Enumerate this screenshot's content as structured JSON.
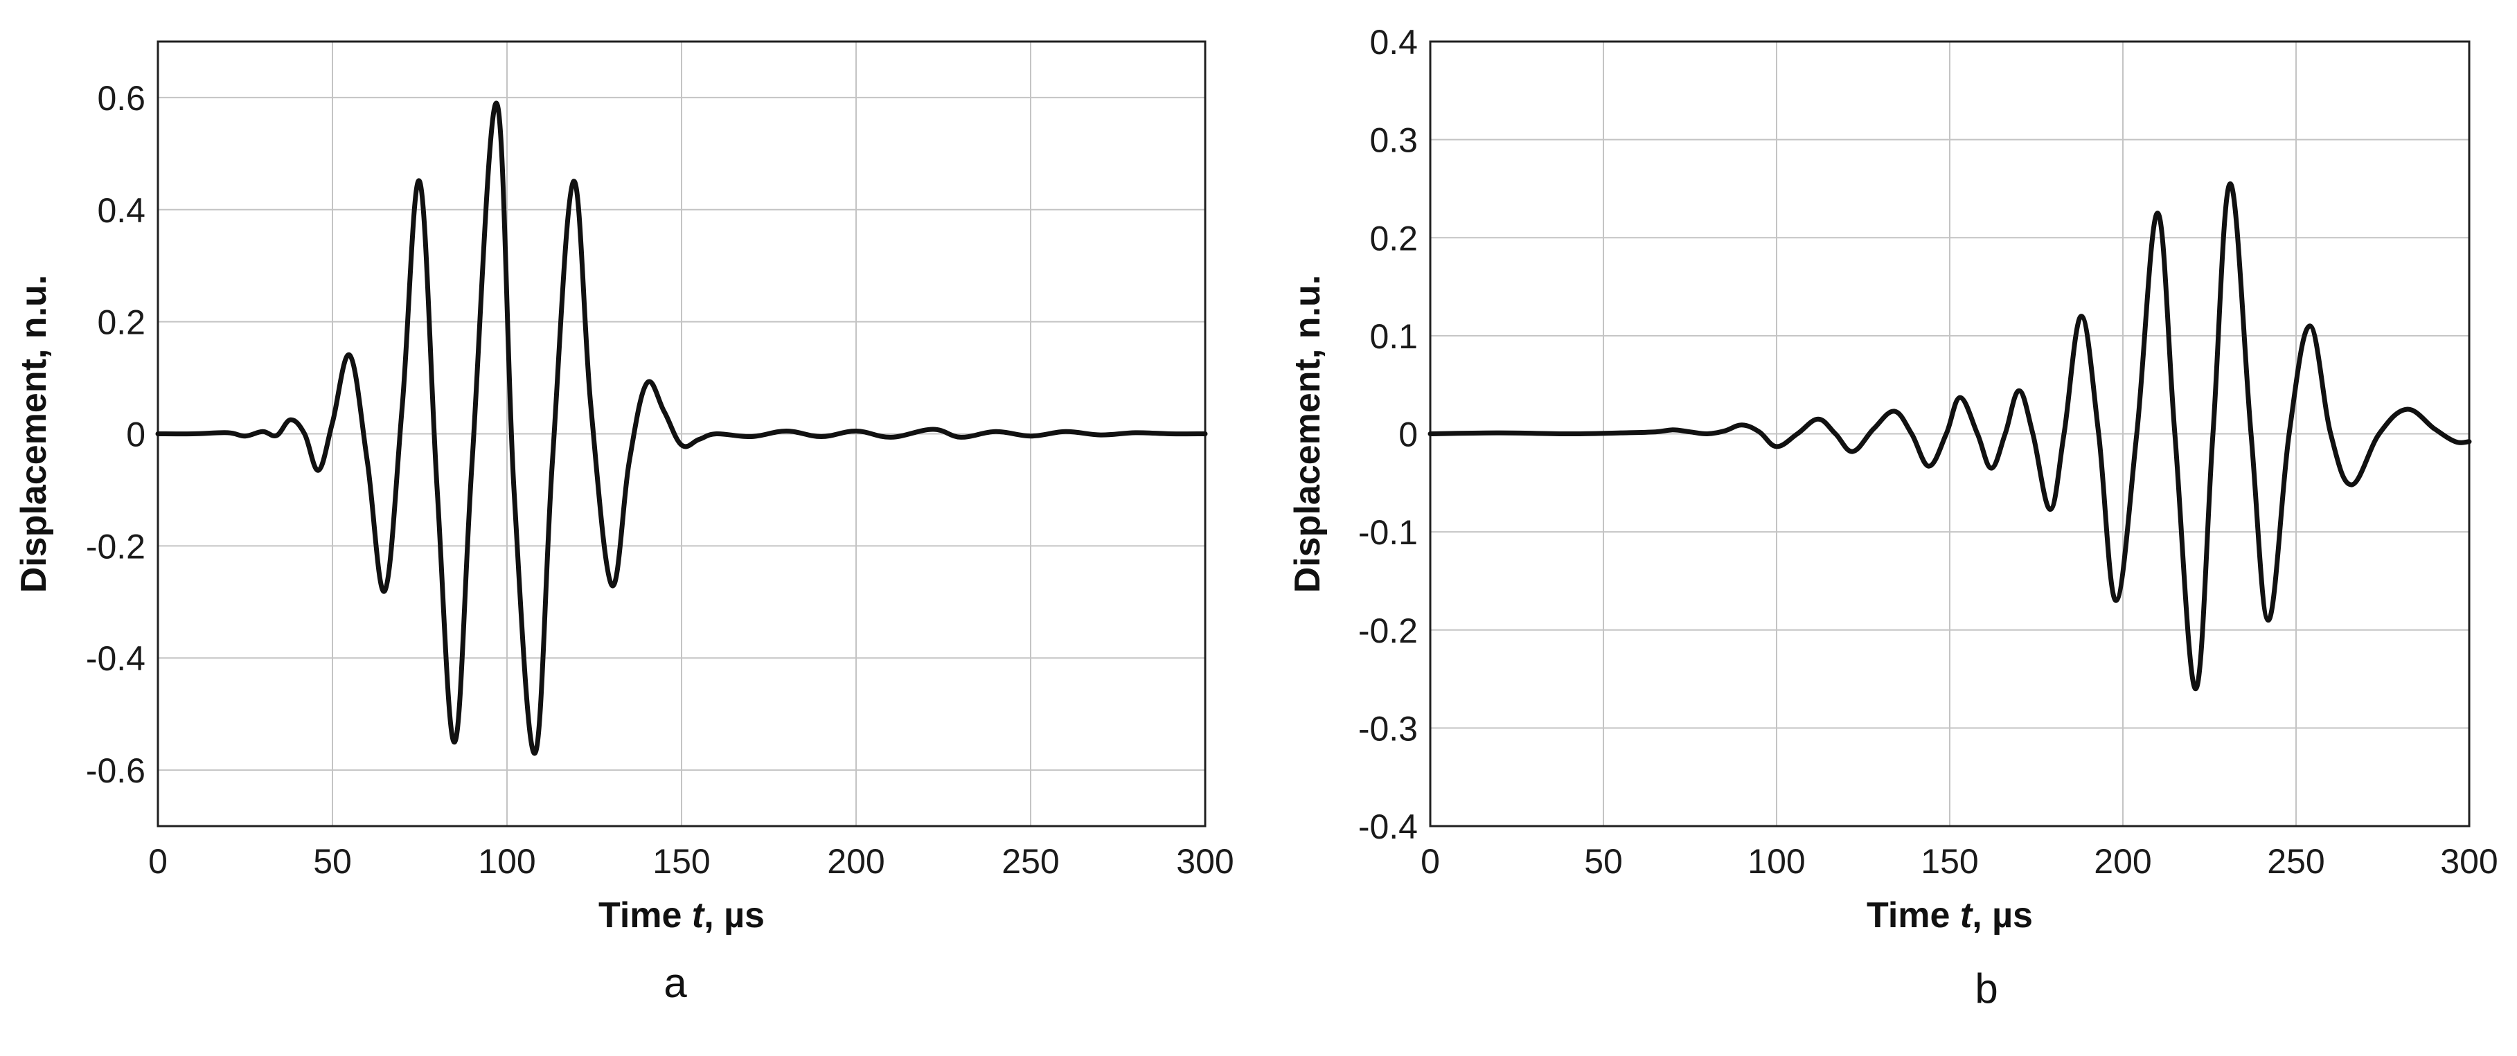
{
  "colors": {
    "line": "#111111",
    "grid": "#c4c4c4",
    "frame": "#202020",
    "text": "#1a1a1a"
  },
  "chart_data": [
    {
      "type": "line",
      "panel_label": "a",
      "xlabel": "Time t, µs",
      "xlabel_parts": [
        "Time ",
        "t",
        ", µs"
      ],
      "ylabel": "Displacement, n.u.",
      "xlim": [
        0,
        300
      ],
      "ylim": [
        -0.7,
        0.7
      ],
      "xticks": [
        0,
        50,
        100,
        150,
        200,
        250,
        300
      ],
      "xtick_labels": [
        "0",
        "50",
        "100",
        "150",
        "200",
        "250",
        "300"
      ],
      "yticks": [
        -0.6,
        -0.4,
        -0.2,
        0,
        0.2,
        0.4,
        0.6
      ],
      "ytick_labels": [
        "-0.6",
        "-0.4",
        "-0.2",
        "0",
        "0.2",
        "0.4",
        "0.6"
      ],
      "grid": true,
      "series": [
        {
          "x": [
            0,
            10,
            20,
            25,
            30,
            34,
            38,
            42,
            46,
            50,
            55,
            60,
            65,
            70,
            75,
            80,
            85,
            90,
            97,
            102,
            108,
            113,
            119,
            124,
            130,
            135,
            140,
            145,
            150,
            155,
            160,
            170,
            180,
            190,
            200,
            210,
            222,
            230,
            240,
            250,
            260,
            270,
            280,
            290,
            300
          ],
          "y": [
            0,
            0,
            0.002,
            -0.004,
            0.004,
            -0.003,
            0.025,
            0.0,
            -0.065,
            0.02,
            0.14,
            -0.05,
            -0.28,
            0.05,
            0.45,
            -0.1,
            -0.55,
            -0.05,
            0.59,
            -0.1,
            -0.57,
            -0.05,
            0.45,
            0.05,
            -0.27,
            -0.05,
            0.09,
            0.04,
            -0.02,
            -0.01,
            0.0,
            -0.005,
            0.005,
            -0.005,
            0.005,
            -0.006,
            0.008,
            -0.006,
            0.004,
            -0.004,
            0.004,
            -0.002,
            0.002,
            0.0,
            0.0
          ]
        }
      ]
    },
    {
      "type": "line",
      "panel_label": "b",
      "xlabel": "Time t, µs",
      "xlabel_parts": [
        "Time ",
        "t",
        ", µs"
      ],
      "ylabel": "Displacement, n.u.",
      "xlim": [
        0,
        300
      ],
      "ylim": [
        -0.4,
        0.4
      ],
      "xticks": [
        0,
        50,
        100,
        150,
        200,
        250,
        300
      ],
      "xtick_labels": [
        "0",
        "50",
        "100",
        "150",
        "200",
        "250",
        "300"
      ],
      "yticks": [
        -0.4,
        -0.3,
        -0.2,
        -0.1,
        0,
        0.1,
        0.2,
        0.3,
        0.4
      ],
      "ytick_labels": [
        "-0.4",
        "-0.3",
        "-0.2",
        "-0.1",
        "0",
        "0.1",
        "0.2",
        "0.3",
        "0.4"
      ],
      "grid": true,
      "series": [
        {
          "x": [
            0,
            20,
            40,
            55,
            65,
            70,
            75,
            80,
            85,
            90,
            95,
            100,
            106,
            112,
            117,
            122,
            128,
            134,
            139,
            144,
            149,
            153,
            158,
            162,
            166,
            170,
            174,
            179,
            183,
            188,
            193,
            198,
            204,
            210,
            215,
            221,
            226,
            231,
            237,
            242,
            248,
            254,
            260,
            266,
            274,
            282,
            290,
            296,
            300
          ],
          "y": [
            0,
            0.001,
            0,
            0.001,
            0.002,
            0.004,
            0.002,
            0.0,
            0.003,
            0.009,
            0.002,
            -0.013,
            0.0,
            0.015,
            0.0,
            -0.018,
            0.005,
            0.023,
            0.0,
            -0.033,
            0.0,
            0.037,
            0.0,
            -0.035,
            0.0,
            0.044,
            0.0,
            -0.077,
            0.0,
            0.12,
            0.0,
            -0.17,
            0.0,
            0.225,
            0.0,
            -0.26,
            0.0,
            0.255,
            0.0,
            -0.19,
            0.0,
            0.11,
            0.0,
            -0.052,
            0.0,
            0.025,
            0.005,
            -0.008,
            -0.008
          ]
        }
      ]
    }
  ]
}
